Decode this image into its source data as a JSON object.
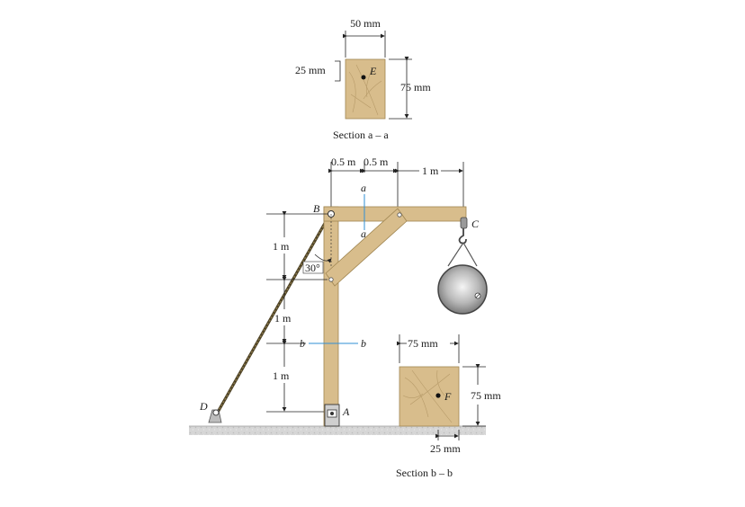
{
  "section_aa": {
    "width_label": "50 mm",
    "offset_label": "25 mm",
    "height_label": "75 mm",
    "point_label": "E",
    "caption": "Section a – a"
  },
  "frame": {
    "top_dims": [
      "0.5 m",
      "0.5 m",
      "1 m"
    ],
    "left_dims": [
      "1 m",
      "1 m",
      "1 m"
    ],
    "angle_label": "30°",
    "point_A": "A",
    "point_B": "B",
    "point_C": "C",
    "point_D": "D",
    "cut_a_top": "a",
    "cut_a_bottom": "a",
    "cut_b_left": "b",
    "cut_b_right": "b"
  },
  "section_bb": {
    "width_label": "75 mm",
    "height_label": "75 mm",
    "offset_label": "25 mm",
    "point_label": "F",
    "caption": "Section b – b"
  },
  "colors": {
    "wood": "#d8bd8c",
    "cut_line": "#2f8fd6",
    "ground": "#c9c9c9"
  }
}
